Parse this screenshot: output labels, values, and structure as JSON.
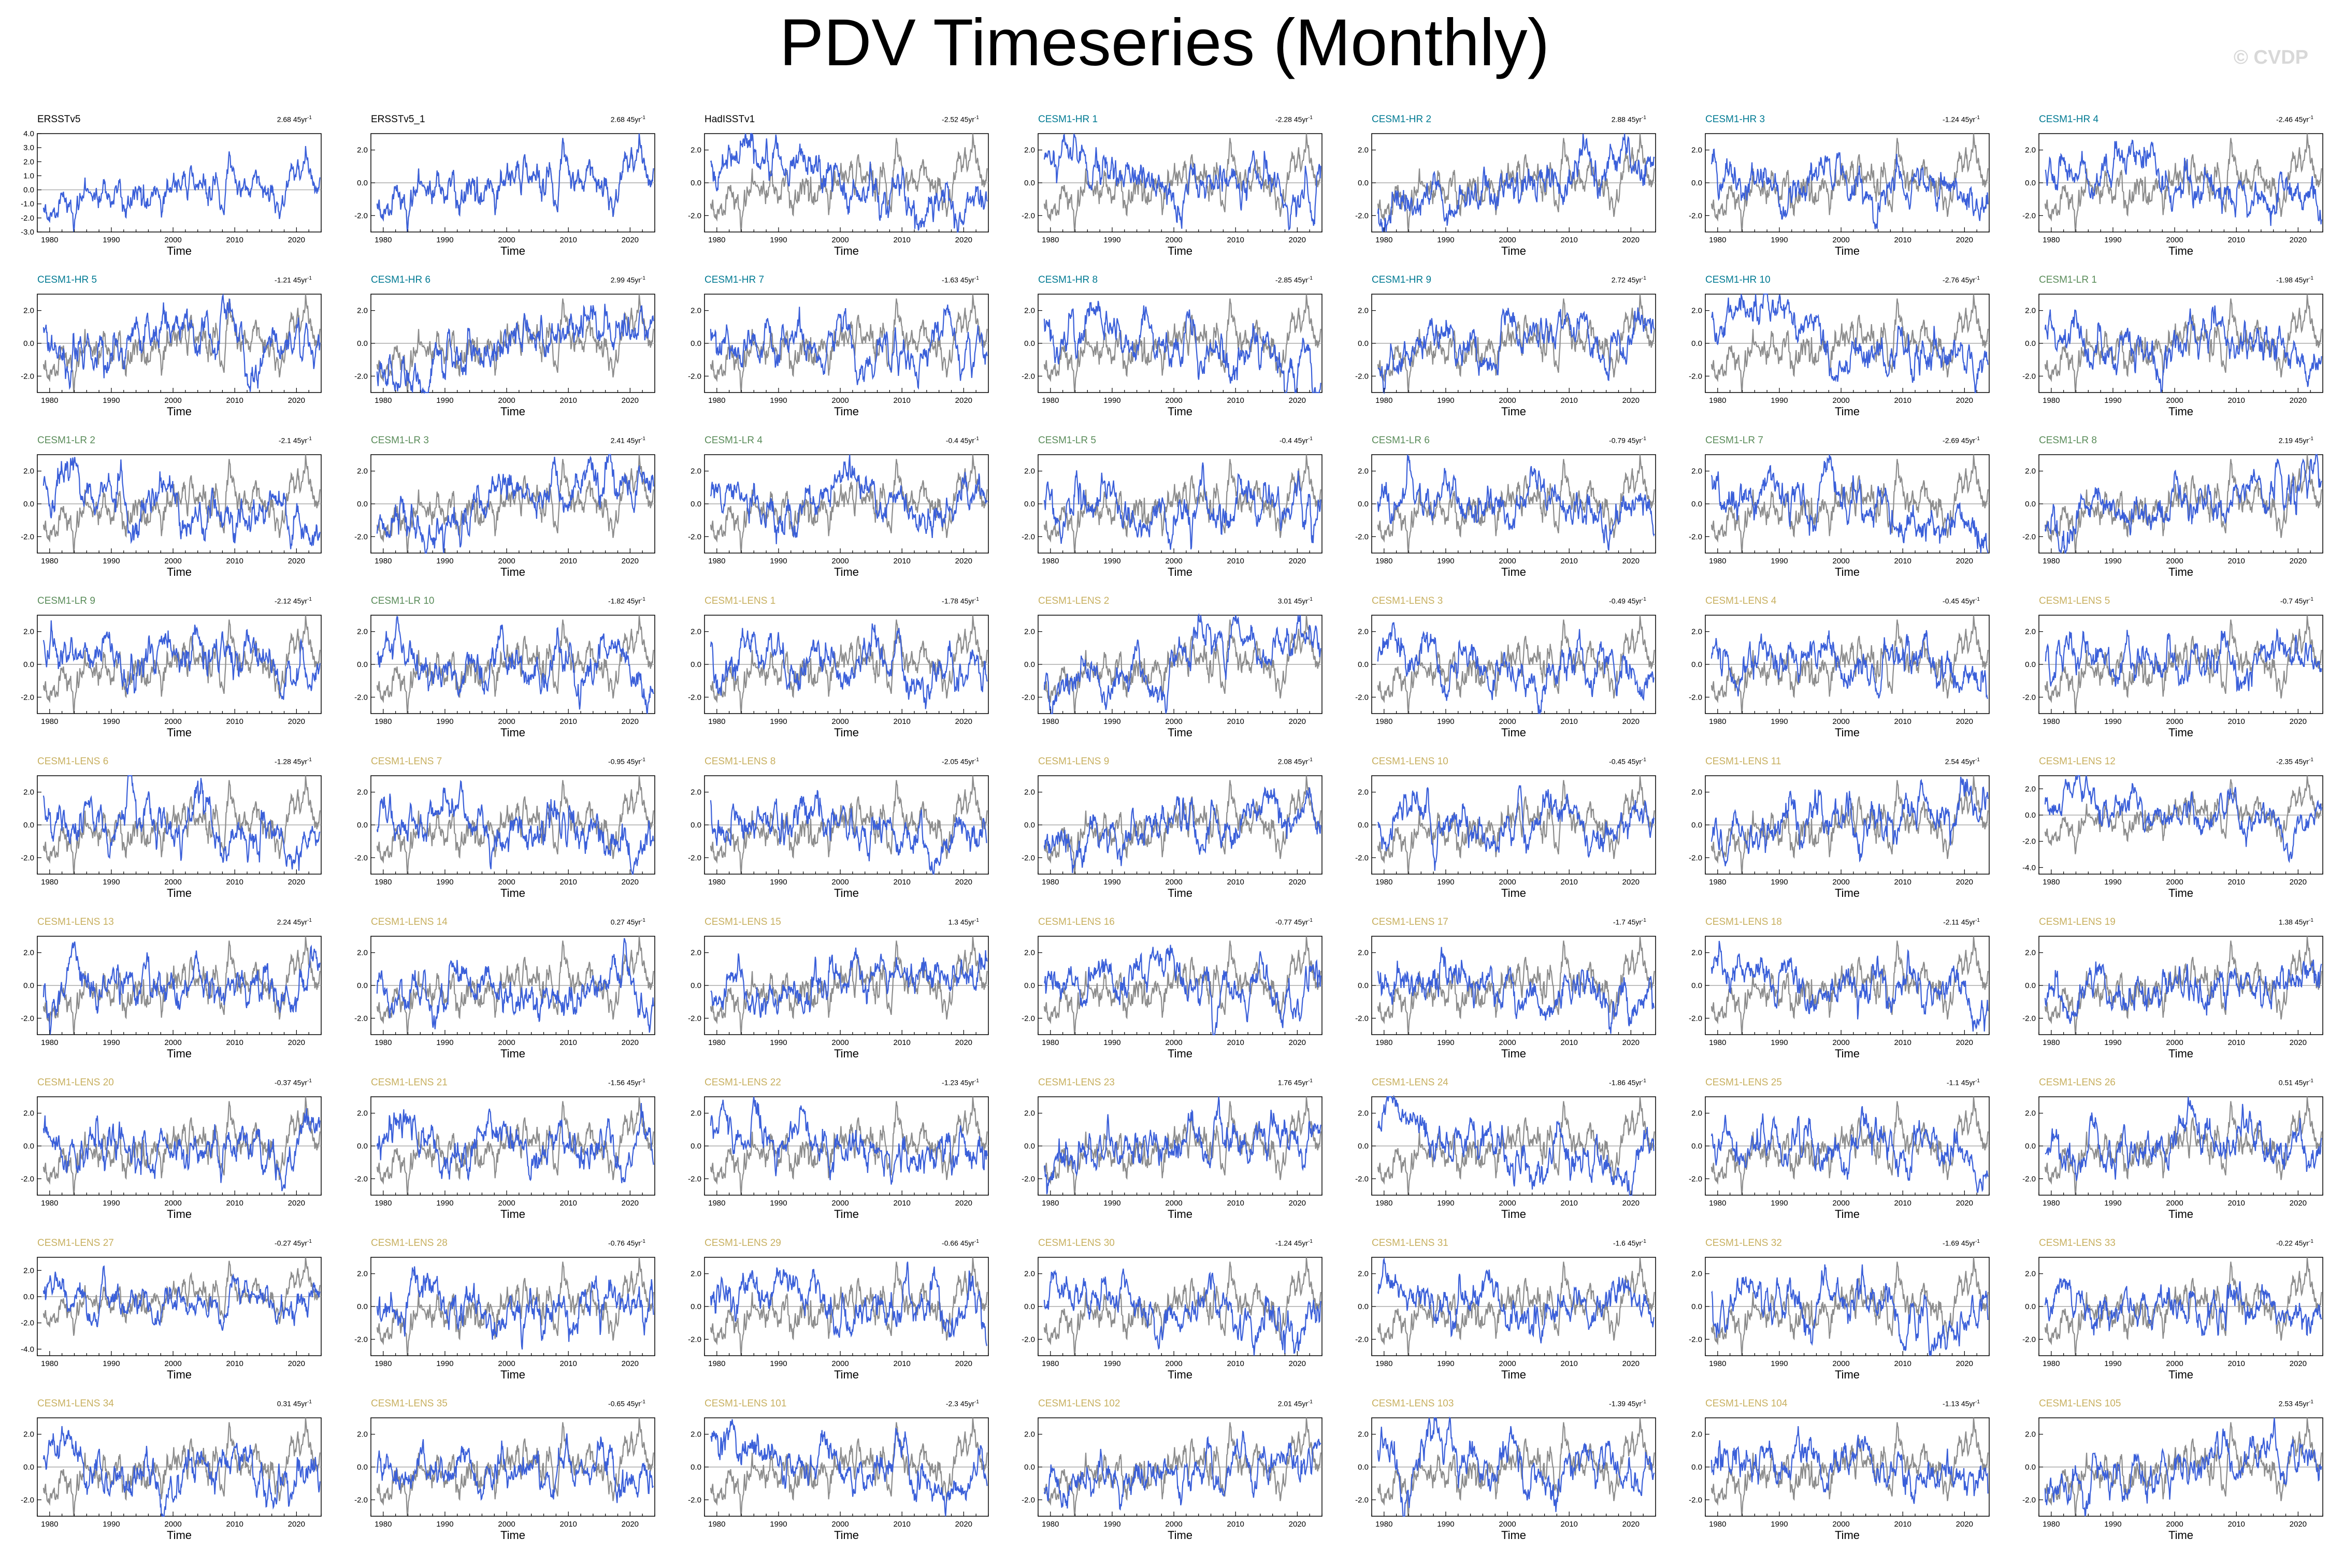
{
  "title": "PDV Timeseries (Monthly)",
  "copyright": "© CVDP",
  "colors": {
    "series": "#3a5fd9",
    "reference": "#8c8c8c",
    "obs_title": "#000000",
    "hr_title": "#007a93",
    "lr_title": "#5a8c5a",
    "lens_title": "#c8b060"
  },
  "chart_data": {
    "type": "line",
    "xlabel": "Time",
    "xlim": [
      1978,
      2024
    ],
    "xticks": [
      1980,
      1990,
      2000,
      2010,
      2020
    ],
    "trend_unit": "45yr",
    "panels": [
      {
        "title": "ERSSTv5",
        "group": "obs",
        "trend": "2.68",
        "ylim": [
          -3.0,
          4.0
        ],
        "yticks": [
          "4.0",
          "3.0",
          "2.0",
          "1.0",
          "0.0",
          "-1.0",
          "-2.0",
          "-3.0"
        ],
        "seed": 1
      },
      {
        "title": "ERSSTv5_1",
        "group": "obs",
        "trend": "2.68",
        "ylim": [
          -3.0,
          3.0
        ],
        "yticks": [
          "2.0",
          "0.0",
          "-2.0"
        ],
        "seed": 1
      },
      {
        "title": "HadISSTv1",
        "group": "obs",
        "trend": "-2.52",
        "ylim": [
          -3.0,
          3.0
        ],
        "yticks": [
          "2.0",
          "0.0",
          "-2.0"
        ],
        "seed": 3
      },
      {
        "title": "CESM1-HR 1",
        "group": "hr",
        "trend": "-2.28",
        "ylim": [
          -3.0,
          3.0
        ],
        "yticks": [
          "2.0",
          "0.0",
          "-2.0"
        ],
        "seed": 4
      },
      {
        "title": "CESM1-HR 2",
        "group": "hr",
        "trend": "2.88",
        "ylim": [
          -3.0,
          3.0
        ],
        "yticks": [
          "2.0",
          "0.0",
          "-2.0"
        ],
        "seed": 5
      },
      {
        "title": "CESM1-HR 3",
        "group": "hr",
        "trend": "-1.24",
        "ylim": [
          -3.0,
          3.0
        ],
        "yticks": [
          "2.0",
          "0.0",
          "-2.0"
        ],
        "seed": 6
      },
      {
        "title": "CESM1-HR 4",
        "group": "hr",
        "trend": "-2.46",
        "ylim": [
          -3.0,
          3.0
        ],
        "yticks": [
          "2.0",
          "0.0",
          "-2.0"
        ],
        "seed": 7
      },
      {
        "title": "CESM1-HR 5",
        "group": "hr",
        "trend": "-1.21",
        "ylim": [
          -3.0,
          3.0
        ],
        "yticks": [
          "2.0",
          "0.0",
          "-2.0"
        ],
        "seed": 8
      },
      {
        "title": "CESM1-HR 6",
        "group": "hr",
        "trend": "2.99",
        "ylim": [
          -3.0,
          3.0
        ],
        "yticks": [
          "2.0",
          "0.0",
          "-2.0"
        ],
        "seed": 9
      },
      {
        "title": "CESM1-HR 7",
        "group": "hr",
        "trend": "-1.63",
        "ylim": [
          -3.0,
          3.0
        ],
        "yticks": [
          "2.0",
          "0.0",
          "-2.0"
        ],
        "seed": 10
      },
      {
        "title": "CESM1-HR 8",
        "group": "hr",
        "trend": "-2.85",
        "ylim": [
          -3.0,
          3.0
        ],
        "yticks": [
          "2.0",
          "0.0",
          "-2.0"
        ],
        "seed": 11
      },
      {
        "title": "CESM1-HR 9",
        "group": "hr",
        "trend": "2.72",
        "ylim": [
          -3.0,
          3.0
        ],
        "yticks": [
          "2.0",
          "0.0",
          "-2.0"
        ],
        "seed": 12
      },
      {
        "title": "CESM1-HR 10",
        "group": "hr",
        "trend": "-2.76",
        "ylim": [
          -3.0,
          3.0
        ],
        "yticks": [
          "2.0",
          "0.0",
          "-2.0"
        ],
        "seed": 13
      },
      {
        "title": "CESM1-LR 1",
        "group": "lr",
        "trend": "-1.98",
        "ylim": [
          -3.0,
          3.0
        ],
        "yticks": [
          "2.0",
          "0.0",
          "-2.0"
        ],
        "seed": 14
      },
      {
        "title": "CESM1-LR 2",
        "group": "lr",
        "trend": "-2.1",
        "ylim": [
          -3.0,
          3.0
        ],
        "yticks": [
          "2.0",
          "0.0",
          "-2.0"
        ],
        "seed": 15
      },
      {
        "title": "CESM1-LR 3",
        "group": "lr",
        "trend": "2.41",
        "ylim": [
          -3.0,
          3.0
        ],
        "yticks": [
          "2.0",
          "0.0",
          "-2.0"
        ],
        "seed": 16
      },
      {
        "title": "CESM1-LR 4",
        "group": "lr",
        "trend": "-0.4",
        "ylim": [
          -3.0,
          3.0
        ],
        "yticks": [
          "2.0",
          "0.0",
          "-2.0"
        ],
        "seed": 17
      },
      {
        "title": "CESM1-LR 5",
        "group": "lr",
        "trend": "-0.4",
        "ylim": [
          -3.0,
          3.0
        ],
        "yticks": [
          "2.0",
          "0.0",
          "-2.0"
        ],
        "seed": 18
      },
      {
        "title": "CESM1-LR 6",
        "group": "lr",
        "trend": "-0.79",
        "ylim": [
          -3.0,
          3.0
        ],
        "yticks": [
          "2.0",
          "0.0",
          "-2.0"
        ],
        "seed": 19
      },
      {
        "title": "CESM1-LR 7",
        "group": "lr",
        "trend": "-2.69",
        "ylim": [
          -3.0,
          3.0
        ],
        "yticks": [
          "2.0",
          "0.0",
          "-2.0"
        ],
        "seed": 20
      },
      {
        "title": "CESM1-LR 8",
        "group": "lr",
        "trend": "2.19",
        "ylim": [
          -3.0,
          3.0
        ],
        "yticks": [
          "2.0",
          "0.0",
          "-2.0"
        ],
        "seed": 21
      },
      {
        "title": "CESM1-LR 9",
        "group": "lr",
        "trend": "-2.12",
        "ylim": [
          -3.0,
          3.0
        ],
        "yticks": [
          "2.0",
          "0.0",
          "-2.0"
        ],
        "seed": 22
      },
      {
        "title": "CESM1-LR 10",
        "group": "lr",
        "trend": "-1.82",
        "ylim": [
          -3.0,
          3.0
        ],
        "yticks": [
          "2.0",
          "0.0",
          "-2.0"
        ],
        "seed": 23
      },
      {
        "title": "CESM1-LENS 1",
        "group": "lens",
        "trend": "-1.78",
        "ylim": [
          -3.0,
          3.0
        ],
        "yticks": [
          "2.0",
          "0.0",
          "-2.0"
        ],
        "seed": 24
      },
      {
        "title": "CESM1-LENS 2",
        "group": "lens",
        "trend": "3.01",
        "ylim": [
          -3.0,
          3.0
        ],
        "yticks": [
          "2.0",
          "0.0",
          "-2.0"
        ],
        "seed": 25
      },
      {
        "title": "CESM1-LENS 3",
        "group": "lens",
        "trend": "-0.49",
        "ylim": [
          -3.0,
          3.0
        ],
        "yticks": [
          "2.0",
          "0.0",
          "-2.0"
        ],
        "seed": 26
      },
      {
        "title": "CESM1-LENS 4",
        "group": "lens",
        "trend": "-0.45",
        "ylim": [
          -3.0,
          3.0
        ],
        "yticks": [
          "2.0",
          "0.0",
          "-2.0"
        ],
        "seed": 27
      },
      {
        "title": "CESM1-LENS 5",
        "group": "lens",
        "trend": "-0.7",
        "ylim": [
          -3.0,
          3.0
        ],
        "yticks": [
          "2.0",
          "0.0",
          "-2.0"
        ],
        "seed": 28
      },
      {
        "title": "CESM1-LENS 6",
        "group": "lens",
        "trend": "-1.28",
        "ylim": [
          -3.0,
          3.0
        ],
        "yticks": [
          "2.0",
          "0.0",
          "-2.0"
        ],
        "seed": 29
      },
      {
        "title": "CESM1-LENS 7",
        "group": "lens",
        "trend": "-0.95",
        "ylim": [
          -3.0,
          3.0
        ],
        "yticks": [
          "2.0",
          "0.0",
          "-2.0"
        ],
        "seed": 30
      },
      {
        "title": "CESM1-LENS 8",
        "group": "lens",
        "trend": "-2.05",
        "ylim": [
          -3.0,
          3.0
        ],
        "yticks": [
          "2.0",
          "0.0",
          "-2.0"
        ],
        "seed": 31
      },
      {
        "title": "CESM1-LENS 9",
        "group": "lens",
        "trend": "2.08",
        "ylim": [
          -3.0,
          3.0
        ],
        "yticks": [
          "2.0",
          "0.0",
          "-2.0"
        ],
        "seed": 32
      },
      {
        "title": "CESM1-LENS 10",
        "group": "lens",
        "trend": "-0.45",
        "ylim": [
          -3.0,
          3.0
        ],
        "yticks": [
          "2.0",
          "0.0",
          "-2.0"
        ],
        "seed": 33
      },
      {
        "title": "CESM1-LENS 11",
        "group": "lens",
        "trend": "2.54",
        "ylim": [
          -3.0,
          3.0
        ],
        "yticks": [
          "2.0",
          "0.0",
          "-2.0"
        ],
        "seed": 34
      },
      {
        "title": "CESM1-LENS 12",
        "group": "lens",
        "trend": "-2.35",
        "ylim": [
          -4.5,
          3.0
        ],
        "yticks": [
          "2.0",
          "0.0",
          "-2.0",
          "-4.0"
        ],
        "seed": 35
      },
      {
        "title": "CESM1-LENS 13",
        "group": "lens",
        "trend": "2.24",
        "ylim": [
          -3.0,
          3.0
        ],
        "yticks": [
          "2.0",
          "0.0",
          "-2.0"
        ],
        "seed": 36
      },
      {
        "title": "CESM1-LENS 14",
        "group": "lens",
        "trend": "0.27",
        "ylim": [
          -3.0,
          3.0
        ],
        "yticks": [
          "2.0",
          "0.0",
          "-2.0"
        ],
        "seed": 37
      },
      {
        "title": "CESM1-LENS 15",
        "group": "lens",
        "trend": "1.3",
        "ylim": [
          -3.0,
          3.0
        ],
        "yticks": [
          "2.0",
          "0.0",
          "-2.0"
        ],
        "seed": 38
      },
      {
        "title": "CESM1-LENS 16",
        "group": "lens",
        "trend": "-0.77",
        "ylim": [
          -3.0,
          3.0
        ],
        "yticks": [
          "2.0",
          "0.0",
          "-2.0"
        ],
        "seed": 39
      },
      {
        "title": "CESM1-LENS 17",
        "group": "lens",
        "trend": "-1.7",
        "ylim": [
          -3.0,
          3.0
        ],
        "yticks": [
          "2.0",
          "0.0",
          "-2.0"
        ],
        "seed": 40
      },
      {
        "title": "CESM1-LENS 18",
        "group": "lens",
        "trend": "-2.11",
        "ylim": [
          -3.0,
          3.0
        ],
        "yticks": [
          "2.0",
          "0.0",
          "-2.0"
        ],
        "seed": 41
      },
      {
        "title": "CESM1-LENS 19",
        "group": "lens",
        "trend": "1.38",
        "ylim": [
          -3.0,
          3.0
        ],
        "yticks": [
          "2.0",
          "0.0",
          "-2.0"
        ],
        "seed": 42
      },
      {
        "title": "CESM1-LENS 20",
        "group": "lens",
        "trend": "-0.37",
        "ylim": [
          -3.0,
          3.0
        ],
        "yticks": [
          "2.0",
          "0.0",
          "-2.0"
        ],
        "seed": 43
      },
      {
        "title": "CESM1-LENS 21",
        "group": "lens",
        "trend": "-1.56",
        "ylim": [
          -3.0,
          3.0
        ],
        "yticks": [
          "2.0",
          "0.0",
          "-2.0"
        ],
        "seed": 44
      },
      {
        "title": "CESM1-LENS 22",
        "group": "lens",
        "trend": "-1.23",
        "ylim": [
          -3.0,
          3.0
        ],
        "yticks": [
          "2.0",
          "0.0",
          "-2.0"
        ],
        "seed": 45
      },
      {
        "title": "CESM1-LENS 23",
        "group": "lens",
        "trend": "1.76",
        "ylim": [
          -3.0,
          3.0
        ],
        "yticks": [
          "2.0",
          "0.0",
          "-2.0"
        ],
        "seed": 46
      },
      {
        "title": "CESM1-LENS 24",
        "group": "lens",
        "trend": "-1.86",
        "ylim": [
          -3.0,
          3.0
        ],
        "yticks": [
          "2.0",
          "0.0",
          "-2.0"
        ],
        "seed": 47
      },
      {
        "title": "CESM1-LENS 25",
        "group": "lens",
        "trend": "-1.1",
        "ylim": [
          -3.0,
          3.0
        ],
        "yticks": [
          "2.0",
          "0.0",
          "-2.0"
        ],
        "seed": 48
      },
      {
        "title": "CESM1-LENS 26",
        "group": "lens",
        "trend": "0.51",
        "ylim": [
          -3.0,
          3.0
        ],
        "yticks": [
          "2.0",
          "0.0",
          "-2.0"
        ],
        "seed": 49
      },
      {
        "title": "CESM1-LENS 27",
        "group": "lens",
        "trend": "-0.27",
        "ylim": [
          -4.5,
          3.0
        ],
        "yticks": [
          "2.0",
          "0.0",
          "-2.0",
          "-4.0"
        ],
        "seed": 50
      },
      {
        "title": "CESM1-LENS 28",
        "group": "lens",
        "trend": "-0.76",
        "ylim": [
          -3.0,
          3.0
        ],
        "yticks": [
          "2.0",
          "0.0",
          "-2.0"
        ],
        "seed": 51
      },
      {
        "title": "CESM1-LENS 29",
        "group": "lens",
        "trend": "-0.66",
        "ylim": [
          -3.0,
          3.0
        ],
        "yticks": [
          "2.0",
          "0.0",
          "-2.0"
        ],
        "seed": 52
      },
      {
        "title": "CESM1-LENS 30",
        "group": "lens",
        "trend": "-1.24",
        "ylim": [
          -3.0,
          3.0
        ],
        "yticks": [
          "2.0",
          "0.0",
          "-2.0"
        ],
        "seed": 53
      },
      {
        "title": "CESM1-LENS 31",
        "group": "lens",
        "trend": "-1.6",
        "ylim": [
          -3.0,
          3.0
        ],
        "yticks": [
          "2.0",
          "0.0",
          "-2.0"
        ],
        "seed": 54
      },
      {
        "title": "CESM1-LENS 32",
        "group": "lens",
        "trend": "-1.69",
        "ylim": [
          -3.0,
          3.0
        ],
        "yticks": [
          "2.0",
          "0.0",
          "-2.0"
        ],
        "seed": 55
      },
      {
        "title": "CESM1-LENS 33",
        "group": "lens",
        "trend": "-0.22",
        "ylim": [
          -3.0,
          3.0
        ],
        "yticks": [
          "2.0",
          "0.0",
          "-2.0"
        ],
        "seed": 56
      },
      {
        "title": "CESM1-LENS 34",
        "group": "lens",
        "trend": "0.31",
        "ylim": [
          -3.0,
          3.0
        ],
        "yticks": [
          "2.0",
          "0.0",
          "-2.0"
        ],
        "seed": 57
      },
      {
        "title": "CESM1-LENS 35",
        "group": "lens",
        "trend": "-0.65",
        "ylim": [
          -3.0,
          3.0
        ],
        "yticks": [
          "2.0",
          "0.0",
          "-2.0"
        ],
        "seed": 58
      },
      {
        "title": "CESM1-LENS 101",
        "group": "lens",
        "trend": "-2.3",
        "ylim": [
          -3.0,
          3.0
        ],
        "yticks": [
          "2.0",
          "0.0",
          "-2.0"
        ],
        "seed": 59
      },
      {
        "title": "CESM1-LENS 102",
        "group": "lens",
        "trend": "2.01",
        "ylim": [
          -3.0,
          3.0
        ],
        "yticks": [
          "2.0",
          "0.0",
          "-2.0"
        ],
        "seed": 60
      },
      {
        "title": "CESM1-LENS 103",
        "group": "lens",
        "trend": "-1.39",
        "ylim": [
          -3.0,
          3.0
        ],
        "yticks": [
          "2.0",
          "0.0",
          "-2.0"
        ],
        "seed": 61
      },
      {
        "title": "CESM1-LENS 104",
        "group": "lens",
        "trend": "-1.13",
        "ylim": [
          -3.0,
          3.0
        ],
        "yticks": [
          "2.0",
          "0.0",
          "-2.0"
        ],
        "seed": 62
      },
      {
        "title": "CESM1-LENS 105",
        "group": "lens",
        "trend": "2.53",
        "ylim": [
          -3.0,
          3.0
        ],
        "yticks": [
          "2.0",
          "0.0",
          "-2.0"
        ],
        "seed": 63
      }
    ]
  }
}
